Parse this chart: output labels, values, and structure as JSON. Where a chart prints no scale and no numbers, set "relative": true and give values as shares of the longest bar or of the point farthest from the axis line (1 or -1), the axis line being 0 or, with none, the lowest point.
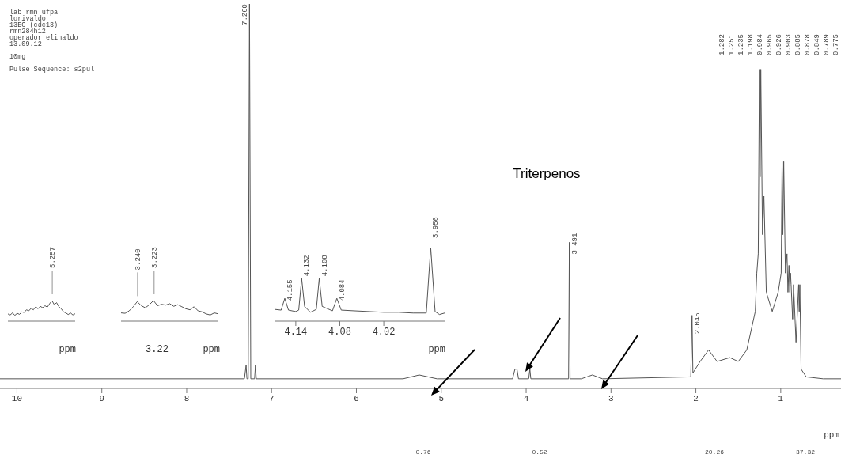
{
  "chart_data": [
    {
      "type": "line",
      "title": "Triterpenos",
      "subtitle": "lab rmn ufpa\nlorivaldo\n13EC (cdc13)\nrmn284h12\noperador elinaldo\n13.09.12\n\n10mg\n\nPulse Sequence: s2pul",
      "xlabel": "ppm",
      "relative": true,
      "xlim": [
        10.2,
        0.29
      ],
      "xticks": [
        10,
        9,
        8,
        7,
        6,
        5,
        4,
        3,
        2,
        1
      ],
      "color": "#555555",
      "x": [
        10.2,
        7.32,
        7.3,
        7.29,
        7.275,
        7.26,
        7.245,
        7.2,
        7.19,
        7.18,
        5.45,
        5.26,
        5.05,
        4.16,
        4.132,
        4.108,
        4.09,
        3.97,
        3.956,
        3.945,
        3.5,
        3.491,
        3.482,
        3.35,
        3.22,
        3.1,
        2.06,
        2.045,
        2.035,
        1.95,
        1.85,
        1.75,
        1.6,
        1.5,
        1.4,
        1.3,
        1.282,
        1.265,
        1.251,
        1.243,
        1.235,
        1.215,
        1.198,
        1.17,
        1.1,
        1.03,
        0.995,
        0.984,
        0.975,
        0.965,
        0.945,
        0.926,
        0.915,
        0.903,
        0.894,
        0.885,
        0.878,
        0.86,
        0.849,
        0.82,
        0.789,
        0.782,
        0.775,
        0.76,
        0.7,
        0.5,
        0.29
      ],
      "values": [
        0.025,
        0.025,
        0.06,
        0.025,
        0.025,
        1,
        0.025,
        0.025,
        0.06,
        0.025,
        0.025,
        0.035,
        0.025,
        0.025,
        0.05,
        0.05,
        0.025,
        0.025,
        0.05,
        0.025,
        0.025,
        0.38,
        0.025,
        0.025,
        0.035,
        0.025,
        0.03,
        0.19,
        0.04,
        0.07,
        0.1,
        0.07,
        0.08,
        0.07,
        0.1,
        0.2,
        0.3,
        0.35,
        0.83,
        0.55,
        0.83,
        0.4,
        0.5,
        0.25,
        0.2,
        0.25,
        0.3,
        0.59,
        0.4,
        0.59,
        0.3,
        0.35,
        0.25,
        0.32,
        0.25,
        0.3,
        0.27,
        0.18,
        0.27,
        0.12,
        0.27,
        0.2,
        0.27,
        0.05,
        0.03,
        0.025,
        0.025
      ],
      "annotations": [
        {
          "text": "7.260",
          "x": 7.26,
          "y": 1
        },
        {
          "text": "3.491",
          "x": 3.491,
          "y": 0.38
        },
        {
          "text": "2.045",
          "x": 2.045,
          "y": 0.19
        },
        "1.282",
        "1.251",
        "1.235",
        "1.198",
        "0.984",
        "0.965",
        "0.926",
        "0.903",
        "0.885",
        "0.878",
        "0.849",
        "0.789",
        "0.775",
        "0.76",
        "0.52",
        "20.26",
        "37.32"
      ]
    },
    {
      "type": "line",
      "xlabel": "ppm",
      "relative": true,
      "color": "#555555",
      "categories": [
        null,
        null,
        null,
        null,
        null,
        null,
        null,
        null,
        null,
        null,
        null,
        null,
        null,
        null,
        null,
        null,
        null,
        null,
        null,
        null,
        null,
        null,
        null,
        null,
        null,
        null,
        null,
        null,
        null,
        null
      ],
      "values": [
        0.35,
        0.3,
        0.4,
        0.28,
        0.38,
        0.33,
        0.45,
        0.42,
        0.55,
        0.5,
        0.62,
        0.55,
        0.7,
        0.6,
        0.72,
        0.65,
        0.75,
        0.68,
        0.85,
        1,
        0.8,
        0.9,
        0.7,
        0.6,
        0.45,
        0.4,
        0.32,
        0.4,
        0.3,
        0.36
      ],
      "annotations": [
        "5.257"
      ]
    },
    {
      "type": "line",
      "xlabel": "ppm",
      "relative": true,
      "color": "#555555",
      "categories": [
        null,
        null,
        null,
        null,
        null,
        null,
        null,
        null,
        null,
        null,
        null,
        null,
        null,
        null,
        null,
        null,
        null,
        null,
        null,
        null,
        null,
        null,
        null,
        null,
        null
      ],
      "values": [
        0.4,
        0.38,
        0.5,
        0.7,
        0.95,
        0.75,
        0.65,
        0.8,
        1,
        0.75,
        0.82,
        0.78,
        0.85,
        0.72,
        0.8,
        0.7,
        0.6,
        0.55,
        0.7,
        0.5,
        0.45,
        0.35,
        0.3,
        0.4,
        0.35
      ],
      "annotations": [
        "3.240",
        "3.223",
        "3.22"
      ]
    },
    {
      "type": "line",
      "xlabel": "ppm",
      "relative": true,
      "color": "#555555",
      "xlim": [
        4.169,
        3.937
      ],
      "xticks": [
        4.14,
        4.08,
        4.02
      ],
      "x": [
        4.169,
        4.16,
        4.155,
        4.15,
        4.14,
        4.136,
        4.132,
        4.128,
        4.12,
        4.112,
        4.108,
        4.104,
        4.09,
        4.084,
        4.078,
        4.06,
        4.04,
        4.02,
        4.0,
        3.98,
        3.962,
        3.956,
        3.95,
        3.944,
        3.937
      ],
      "values": [
        0.16,
        0.15,
        0.31,
        0.15,
        0.13,
        0.15,
        0.58,
        0.2,
        0.12,
        0.16,
        0.58,
        0.2,
        0.14,
        0.31,
        0.15,
        0.14,
        0.13,
        0.12,
        0.12,
        0.11,
        0.11,
        1,
        0.13,
        0.09,
        0.11
      ],
      "annotations": [
        {
          "text": "4.155",
          "x": 4.155,
          "y": 0.31
        },
        {
          "text": "4.132",
          "x": 4.132,
          "y": 0.58
        },
        {
          "text": "4.108",
          "x": 4.108,
          "y": 0.58
        },
        {
          "text": "4.084",
          "x": 4.084,
          "y": 0.31
        },
        {
          "text": "3.956",
          "x": 3.956,
          "y": 1
        }
      ]
    }
  ]
}
